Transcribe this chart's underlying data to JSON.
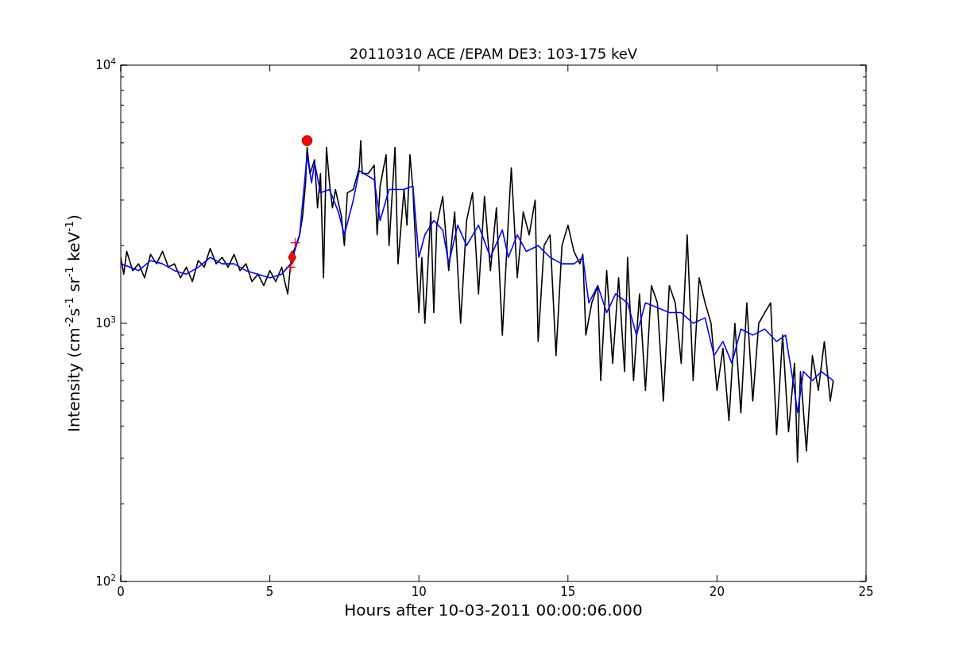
{
  "chart_data": {
    "type": "line",
    "title": "20110310 ACE /EPAM DE3: 103-175 keV",
    "xlabel": "Hours after 10-03-2011 00:00:06.000",
    "ylabel": "Intensity (cm$^{-2}$s$^{-1}$ sr$^{-1}$ keV$^{-1}$)",
    "log": "y",
    "grid": false,
    "tick_labels": "xy",
    "xlim": [
      0,
      25
    ],
    "xticks": [
      0,
      5,
      10,
      15,
      20,
      25
    ],
    "ylim": [
      100,
      10000
    ],
    "yticks": [
      {
        "value": 100,
        "label": "10$^{2}$"
      },
      {
        "value": 200,
        "label": null
      },
      {
        "value": 300,
        "label": null
      },
      {
        "value": 400,
        "label": null
      },
      {
        "value": 500,
        "label": null
      },
      {
        "value": 600,
        "label": null
      },
      {
        "value": 700,
        "label": null
      },
      {
        "value": 800,
        "label": null
      },
      {
        "value": 900,
        "label": null
      },
      {
        "value": 1000,
        "label": "10$^{3}$"
      },
      {
        "value": 2000,
        "label": null
      },
      {
        "value": 3000,
        "label": null
      },
      {
        "value": 4000,
        "label": null
      },
      {
        "value": 5000,
        "label": null
      },
      {
        "value": 6000,
        "label": null
      },
      {
        "value": 7000,
        "label": null
      },
      {
        "value": 8000,
        "label": null
      },
      {
        "value": 9000,
        "label": null
      },
      {
        "value": 10000,
        "label": "10$^{4}$"
      }
    ],
    "series": [
      {
        "color": "#000000",
        "marker": "none",
        "line_style": "solid",
        "x": [
          0,
          0.1,
          0.2,
          0.4,
          0.6,
          0.8,
          1.0,
          1.2,
          1.4,
          1.6,
          1.8,
          2.0,
          2.2,
          2.4,
          2.6,
          2.8,
          3.0,
          3.2,
          3.4,
          3.6,
          3.8,
          4.0,
          4.2,
          4.4,
          4.6,
          4.8,
          5.0,
          5.2,
          5.4,
          5.5,
          5.6,
          5.7,
          5.8,
          6.0,
          6.1,
          6.2,
          6.25,
          6.35,
          6.5,
          6.6,
          6.7,
          6.8,
          6.9,
          7.0,
          7.1,
          7.2,
          7.4,
          7.5,
          7.6,
          7.8,
          8.0,
          8.05,
          8.1,
          8.3,
          8.5,
          8.6,
          8.7,
          8.9,
          9.0,
          9.2,
          9.3,
          9.5,
          9.6,
          9.7,
          9.8,
          10.0,
          10.1,
          10.2,
          10.4,
          10.5,
          10.6,
          10.8,
          11.0,
          11.2,
          11.4,
          11.6,
          11.8,
          12.0,
          12.2,
          12.4,
          12.6,
          12.8,
          13.0,
          13.1,
          13.3,
          13.5,
          13.7,
          13.9,
          14.0,
          14.2,
          14.4,
          14.6,
          14.8,
          15.0,
          15.2,
          15.4,
          15.5,
          15.6,
          15.8,
          16.0,
          16.1,
          16.3,
          16.5,
          16.7,
          16.9,
          17.0,
          17.2,
          17.4,
          17.6,
          17.8,
          18.0,
          18.2,
          18.4,
          18.6,
          18.8,
          19.0,
          19.2,
          19.4,
          19.6,
          19.8,
          20.0,
          20.2,
          20.4,
          20.6,
          20.8,
          21.0,
          21.2,
          21.4,
          21.6,
          21.8,
          22.0,
          22.2,
          22.4,
          22.6,
          22.7,
          22.8,
          23.0,
          23.2,
          23.4,
          23.6,
          23.8,
          23.9
        ],
        "values": [
          1800,
          1550,
          1900,
          1600,
          1700,
          1500,
          1850,
          1700,
          1900,
          1650,
          1700,
          1500,
          1650,
          1450,
          1750,
          1650,
          1950,
          1700,
          1800,
          1650,
          1850,
          1600,
          1700,
          1450,
          1550,
          1400,
          1600,
          1450,
          1650,
          1450,
          1300,
          1700,
          1900,
          2200,
          2600,
          3500,
          4800,
          3800,
          4300,
          2800,
          3800,
          1500,
          4800,
          3500,
          2800,
          3300,
          2600,
          2000,
          3200,
          3300,
          4000,
          5100,
          3800,
          3800,
          4100,
          2200,
          3400,
          4500,
          2000,
          4800,
          1700,
          3300,
          2400,
          4500,
          3300,
          1100,
          1800,
          1000,
          2700,
          1100,
          2400,
          3100,
          1600,
          2700,
          1000,
          2500,
          3200,
          1300,
          3100,
          1600,
          2800,
          900,
          2500,
          4000,
          1500,
          2700,
          2200,
          3000,
          850,
          2000,
          2200,
          750,
          2000,
          2400,
          1900,
          1700,
          1850,
          900,
          1200,
          1400,
          600,
          1600,
          700,
          1500,
          650,
          1800,
          600,
          1300,
          550,
          1400,
          1200,
          500,
          1400,
          1200,
          700,
          2200,
          600,
          1500,
          1200,
          1000,
          550,
          800,
          420,
          1000,
          450,
          1200,
          500,
          1000,
          1100,
          1200,
          370,
          900,
          380,
          700,
          290,
          650,
          320,
          750,
          550,
          850,
          500,
          600
        ]
      },
      {
        "color": "#0000ff",
        "marker": "none",
        "line_style": "solid",
        "x": [
          0,
          0.3,
          0.6,
          1.0,
          1.4,
          1.8,
          2.2,
          2.6,
          3.0,
          3.4,
          3.8,
          4.2,
          4.6,
          5.0,
          5.4,
          5.7,
          6.0,
          6.25,
          6.4,
          6.5,
          6.7,
          7.0,
          7.3,
          7.5,
          7.8,
          8.0,
          8.5,
          8.7,
          9.0,
          9.5,
          9.8,
          10.0,
          10.2,
          10.5,
          10.8,
          11.0,
          11.3,
          11.6,
          12.0,
          12.4,
          12.8,
          13.0,
          13.3,
          13.6,
          14.0,
          14.4,
          14.8,
          15.2,
          15.5,
          15.7,
          16.0,
          16.3,
          16.6,
          17.0,
          17.3,
          17.6,
          18.0,
          18.4,
          18.8,
          19.2,
          19.6,
          19.9,
          20.2,
          20.5,
          20.8,
          21.2,
          21.6,
          22.0,
          22.3,
          22.6,
          22.7,
          22.9,
          23.2,
          23.5,
          23.9
        ],
        "values": [
          1700,
          1650,
          1600,
          1750,
          1700,
          1600,
          1550,
          1650,
          1800,
          1700,
          1700,
          1600,
          1550,
          1500,
          1550,
          1700,
          2200,
          4500,
          3500,
          4200,
          3200,
          3300,
          2700,
          2200,
          3000,
          3900,
          3600,
          2500,
          3300,
          3300,
          3400,
          1800,
          2200,
          2500,
          2300,
          1700,
          2400,
          2000,
          2400,
          1800,
          2300,
          1800,
          2200,
          1900,
          2000,
          1800,
          1700,
          1700,
          1800,
          1200,
          1400,
          1100,
          1300,
          1200,
          900,
          1200,
          1150,
          1100,
          1100,
          1000,
          1050,
          750,
          850,
          700,
          950,
          900,
          950,
          850,
          900,
          550,
          450,
          650,
          600,
          650,
          600
        ]
      },
      {
        "type": "scatter",
        "color": "#ff0000",
        "marker": "cross",
        "x": [
          5.7,
          5.85
        ],
        "values": [
          1650,
          2050
        ]
      },
      {
        "type": "scatter",
        "color": "#ff0000",
        "marker": "diamond",
        "x": [
          5.75
        ],
        "values": [
          1800
        ]
      },
      {
        "type": "scatter",
        "color": "#ff0000",
        "marker": "circle",
        "x": [
          6.25
        ],
        "values": [
          5100
        ]
      }
    ]
  }
}
